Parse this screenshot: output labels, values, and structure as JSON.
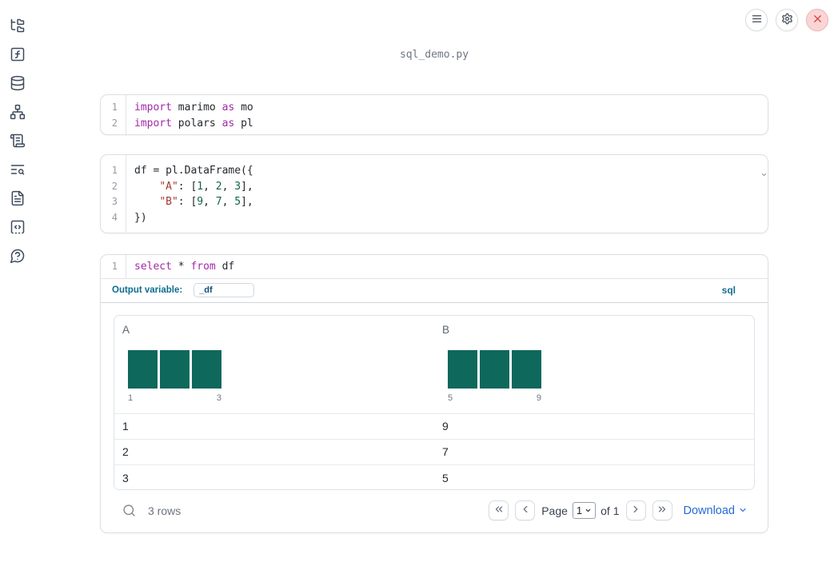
{
  "window": {
    "title": "sql_demo.py"
  },
  "topbar": {
    "buttons": [
      {
        "name": "menu-button",
        "icon": "menu-icon"
      },
      {
        "name": "settings-button",
        "icon": "gear-icon"
      },
      {
        "name": "shutdown-button",
        "icon": "close-x-icon"
      }
    ]
  },
  "sidebar": {
    "items": [
      {
        "name": "file-explorer",
        "icon": "folder-tree-icon"
      },
      {
        "name": "variables",
        "icon": "function-square-icon"
      },
      {
        "name": "datasources",
        "icon": "database-icon"
      },
      {
        "name": "dependency-graph",
        "icon": "network-icon"
      },
      {
        "name": "outline",
        "icon": "scroll-text-icon"
      },
      {
        "name": "logs",
        "icon": "text-search-icon"
      },
      {
        "name": "documentation",
        "icon": "file-text-icon"
      },
      {
        "name": "snippets",
        "icon": "square-code-icon"
      },
      {
        "name": "help",
        "icon": "message-question-icon"
      }
    ]
  },
  "cells": [
    {
      "id": "imports",
      "lines": [
        {
          "num": "1",
          "tokens": [
            {
              "t": "import",
              "c": "kw"
            },
            {
              "t": " marimo ",
              "c": "pl"
            },
            {
              "t": "as",
              "c": "kw"
            },
            {
              "t": " mo",
              "c": "pl"
            }
          ]
        },
        {
          "num": "2",
          "tokens": [
            {
              "t": "import",
              "c": "kw"
            },
            {
              "t": " polars ",
              "c": "pl"
            },
            {
              "t": "as",
              "c": "kw"
            },
            {
              "t": " pl",
              "c": "pl"
            }
          ]
        }
      ]
    },
    {
      "id": "dataframe",
      "lines": [
        {
          "num": "1",
          "tokens": [
            {
              "t": "df = pl.DataFrame({",
              "c": "pl"
            }
          ]
        },
        {
          "num": "2",
          "tokens": [
            {
              "t": "    ",
              "c": "pl"
            },
            {
              "t": "\"A\"",
              "c": "str"
            },
            {
              "t": ": [",
              "c": "pl"
            },
            {
              "t": "1",
              "c": "num"
            },
            {
              "t": ", ",
              "c": "pl"
            },
            {
              "t": "2",
              "c": "num"
            },
            {
              "t": ", ",
              "c": "pl"
            },
            {
              "t": "3",
              "c": "num"
            },
            {
              "t": "],",
              "c": "pl"
            }
          ]
        },
        {
          "num": "3",
          "tokens": [
            {
              "t": "    ",
              "c": "pl"
            },
            {
              "t": "\"B\"",
              "c": "str"
            },
            {
              "t": ": [",
              "c": "pl"
            },
            {
              "t": "9",
              "c": "num"
            },
            {
              "t": ", ",
              "c": "pl"
            },
            {
              "t": "7",
              "c": "num"
            },
            {
              "t": ", ",
              "c": "pl"
            },
            {
              "t": "5",
              "c": "num"
            },
            {
              "t": "],",
              "c": "pl"
            }
          ]
        },
        {
          "num": "4",
          "tokens": [
            {
              "t": "})",
              "c": "pl"
            }
          ]
        }
      ]
    },
    {
      "id": "sql",
      "lines": [
        {
          "num": "1",
          "tokens": [
            {
              "t": "select",
              "c": "kw"
            },
            {
              "t": " * ",
              "c": "pl"
            },
            {
              "t": "from",
              "c": "kw"
            },
            {
              "t": " df",
              "c": "pl"
            }
          ]
        }
      ]
    }
  ],
  "sql_cell": {
    "output_variable_label": "Output variable:",
    "output_variable_value": "_df",
    "language_badge": "sql"
  },
  "table": {
    "columns": [
      {
        "label": "A",
        "hist": {
          "bins": 3,
          "bar_heights": [
            1,
            1,
            1
          ],
          "min_label": "1",
          "max_label": "3"
        }
      },
      {
        "label": "B",
        "hist": {
          "bins": 3,
          "bar_heights": [
            1,
            1,
            1
          ],
          "min_label": "5",
          "max_label": "9"
        }
      }
    ],
    "rows": [
      [
        "1",
        "9"
      ],
      [
        "2",
        "7"
      ],
      [
        "3",
        "5"
      ]
    ],
    "row_count": "3 rows",
    "footer_icons": {
      "search": "search-icon"
    },
    "pagination": {
      "first_icon": "chevrons-left-icon",
      "prev_icon": "chevron-left-icon",
      "page_label": "Page",
      "page_value": "1",
      "of_label": "of 1",
      "next_icon": "chevron-right-icon",
      "last_icon": "chevrons-right-icon"
    },
    "download_label": "Download",
    "download_icon": "chevron-down-icon"
  },
  "colors": {
    "histogram_bar": "#0e685c",
    "keyword": "#a229a8",
    "string": "#a33a2e",
    "number": "#116644",
    "accent_teal_blue": "#0c6e8f",
    "link_blue": "#2569d6",
    "close_button_bg": "#fbd5d5",
    "close_button_fg": "#d64545"
  }
}
